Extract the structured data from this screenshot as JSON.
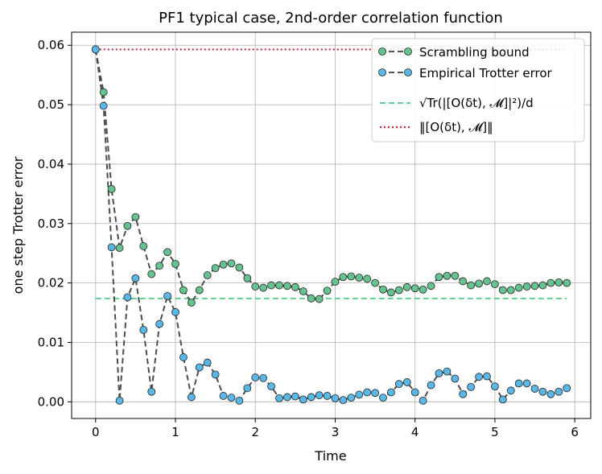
{
  "chart_data": {
    "type": "line",
    "title": "PF1 typical case, 2nd-order correlation function",
    "xlabel": "Time",
    "ylabel": "one step Trotter error",
    "xlim": [
      -0.3,
      6.2
    ],
    "ylim": [
      -0.0028,
      0.0622
    ],
    "xticks": [
      0,
      1,
      2,
      3,
      4,
      5,
      6
    ],
    "xtick_labels": [
      "0",
      "1",
      "2",
      "3",
      "4",
      "5",
      "6"
    ],
    "yticks": [
      0.0,
      0.01,
      0.02,
      0.03,
      0.04,
      0.05,
      0.06
    ],
    "ytick_labels": [
      "0.00",
      "0.01",
      "0.02",
      "0.03",
      "0.04",
      "0.05",
      "0.06"
    ],
    "grid": true,
    "legend_position": "top-right",
    "legend": [
      {
        "label": "Scrambling bound",
        "style": "dashed-marker",
        "color": "#555555",
        "marker_color": "#66c28f"
      },
      {
        "label": "Empirical Trotter error",
        "style": "dashed-marker",
        "color": "#555555",
        "marker_color": "#5bb8e6"
      },
      {
        "label": "√Tr(|[O(δt), 𝓜]|²)/d",
        "style": "dashed",
        "color": "#5fcf90"
      },
      {
        "label": "‖[O(δt), 𝓜]‖",
        "style": "dotted",
        "color": "#c0283a"
      }
    ],
    "x": [
      0.0,
      0.1,
      0.2,
      0.3,
      0.4,
      0.5,
      0.6,
      0.7,
      0.8,
      0.9,
      1.0,
      1.1,
      1.2,
      1.3,
      1.4,
      1.5,
      1.6,
      1.7,
      1.8,
      1.9,
      2.0,
      2.1,
      2.2,
      2.3,
      2.4,
      2.5,
      2.6,
      2.7,
      2.8,
      2.9,
      3.0,
      3.1,
      3.2,
      3.3,
      3.4,
      3.5,
      3.6,
      3.7,
      3.8,
      3.9,
      4.0,
      4.1,
      4.2,
      4.3,
      4.4,
      4.5,
      4.6,
      4.7,
      4.8,
      4.9,
      5.0,
      5.1,
      5.2,
      5.3,
      5.4,
      5.5,
      5.6,
      5.7,
      5.8,
      5.9
    ],
    "series": [
      {
        "name": "Scrambling bound",
        "values": [
          0.0593,
          0.0521,
          0.0358,
          0.0259,
          0.0296,
          0.0311,
          0.0262,
          0.0215,
          0.0229,
          0.0252,
          0.0232,
          0.0188,
          0.0167,
          0.0188,
          0.0213,
          0.0225,
          0.0231,
          0.0233,
          0.0226,
          0.0208,
          0.0194,
          0.0192,
          0.0196,
          0.0196,
          0.0195,
          0.0193,
          0.0186,
          0.0174,
          0.0173,
          0.0187,
          0.0202,
          0.021,
          0.0211,
          0.0209,
          0.0207,
          0.02,
          0.0189,
          0.0184,
          0.0188,
          0.0193,
          0.0191,
          0.0189,
          0.0195,
          0.021,
          0.0212,
          0.0212,
          0.0203,
          0.0196,
          0.0199,
          0.0203,
          0.0198,
          0.0188,
          0.0188,
          0.0192,
          0.0194,
          0.0195,
          0.0196,
          0.02,
          0.0201,
          0.02
        ]
      },
      {
        "name": "Empirical Trotter error",
        "values": [
          0.0593,
          0.0498,
          0.026,
          0.0002,
          0.0176,
          0.0208,
          0.0121,
          0.0017,
          0.0131,
          0.0178,
          0.0151,
          0.0075,
          0.0008,
          0.0058,
          0.0066,
          0.0046,
          0.001,
          0.0007,
          0.0002,
          0.0023,
          0.0041,
          0.004,
          0.0026,
          0.0006,
          0.0008,
          0.0009,
          0.0004,
          0.0008,
          0.0011,
          0.001,
          0.0006,
          0.0003,
          0.0007,
          0.0012,
          0.0016,
          0.0015,
          0.0007,
          0.0016,
          0.003,
          0.0033,
          0.0016,
          0.0002,
          0.0028,
          0.0048,
          0.0051,
          0.0039,
          0.0013,
          0.0025,
          0.0042,
          0.0043,
          0.0026,
          0.0004,
          0.0019,
          0.0031,
          0.0031,
          0.0022,
          0.0017,
          0.0013,
          0.0017,
          0.0023
        ]
      }
    ],
    "hlines": [
      {
        "name": "√Tr(|[O(δt), 𝓜]|²)/d",
        "y": 0.0174,
        "x_range": [
          0.0,
          5.9
        ]
      },
      {
        "name": "‖[O(δt), 𝓜]‖",
        "y": 0.0593,
        "x_range": [
          0.0,
          5.9
        ]
      }
    ]
  }
}
